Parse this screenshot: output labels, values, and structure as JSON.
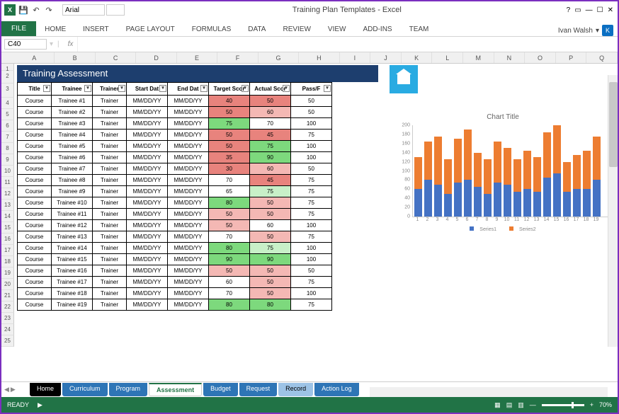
{
  "app": {
    "title": "Training Plan Templates - Excel",
    "user": "Ivan Walsh",
    "user_initial": "K"
  },
  "qat": {
    "font_name": "Arial",
    "font_size": ""
  },
  "ribbon": {
    "file": "FILE",
    "tabs": [
      "HOME",
      "INSERT",
      "PAGE LAYOUT",
      "FORMULAS",
      "DATA",
      "REVIEW",
      "VIEW",
      "ADD-INS",
      "TEAM"
    ]
  },
  "formula": {
    "name_box": "C40",
    "fx": "fx"
  },
  "columns": [
    "A",
    "B",
    "C",
    "D",
    "E",
    "F",
    "G",
    "H",
    "I",
    "J",
    "K",
    "L",
    "M",
    "N",
    "O",
    "P",
    "Q"
  ],
  "row_start": 1,
  "row_end": 25,
  "banner": "Training Assessment",
  "table": {
    "headers": [
      "Title",
      "Trainee",
      "Trainer",
      "Start Dat",
      "End Dat",
      "Target Scor",
      "Actual Scor",
      "Pass/F"
    ],
    "rows": [
      {
        "title": "Course",
        "trainee": "Trainee #1",
        "trainer": "Trainer",
        "start": "MM/DD/YY",
        "end": "MM/DD/YY",
        "target": 40,
        "target_cls": "cell-red",
        "actual": 50,
        "actual_cls": "cell-red",
        "pass": 50
      },
      {
        "title": "Course",
        "trainee": "Trainee #2",
        "trainer": "Trainer",
        "start": "MM/DD/YY",
        "end": "MM/DD/YY",
        "target": 50,
        "target_cls": "cell-red",
        "actual": 60,
        "actual_cls": "cell-lightred",
        "pass": 50
      },
      {
        "title": "Course",
        "trainee": "Trainee #3",
        "trainer": "Trainer",
        "start": "MM/DD/YY",
        "end": "MM/DD/YY",
        "target": 75,
        "target_cls": "cell-green",
        "actual": 70,
        "actual_cls": "",
        "pass": 100
      },
      {
        "title": "Course",
        "trainee": "Trainee #4",
        "trainer": "Trainer",
        "start": "MM/DD/YY",
        "end": "MM/DD/YY",
        "target": 50,
        "target_cls": "cell-red",
        "actual": 45,
        "actual_cls": "cell-red",
        "pass": 75
      },
      {
        "title": "Course",
        "trainee": "Trainee #5",
        "trainer": "Trainer",
        "start": "MM/DD/YY",
        "end": "MM/DD/YY",
        "target": 50,
        "target_cls": "cell-red",
        "actual": 75,
        "actual_cls": "cell-green",
        "pass": 100
      },
      {
        "title": "Course",
        "trainee": "Trainee #6",
        "trainer": "Trainer",
        "start": "MM/DD/YY",
        "end": "MM/DD/YY",
        "target": 35,
        "target_cls": "cell-red",
        "actual": 90,
        "actual_cls": "cell-green",
        "pass": 100
      },
      {
        "title": "Course",
        "trainee": "Trainee #7",
        "trainer": "Trainer",
        "start": "MM/DD/YY",
        "end": "MM/DD/YY",
        "target": 30,
        "target_cls": "cell-red",
        "actual": 60,
        "actual_cls": "cell-lightred",
        "pass": 50
      },
      {
        "title": "Course",
        "trainee": "Trainee #8",
        "trainer": "Trainer",
        "start": "MM/DD/YY",
        "end": "MM/DD/YY",
        "target": 70,
        "target_cls": "",
        "actual": 45,
        "actual_cls": "cell-red",
        "pass": 75
      },
      {
        "title": "Course",
        "trainee": "Trainee #9",
        "trainer": "Trainer",
        "start": "MM/DD/YY",
        "end": "MM/DD/YY",
        "target": 65,
        "target_cls": "",
        "actual": 75,
        "actual_cls": "cell-lightgreen",
        "pass": 75
      },
      {
        "title": "Course",
        "trainee": "Trainee #10",
        "trainer": "Trainer",
        "start": "MM/DD/YY",
        "end": "MM/DD/YY",
        "target": 80,
        "target_cls": "cell-green",
        "actual": 50,
        "actual_cls": "cell-lightred",
        "pass": 75
      },
      {
        "title": "Course",
        "trainee": "Trainee #11",
        "trainer": "Trainer",
        "start": "MM/DD/YY",
        "end": "MM/DD/YY",
        "target": 50,
        "target_cls": "cell-lightred",
        "actual": 50,
        "actual_cls": "cell-lightred",
        "pass": 75
      },
      {
        "title": "Course",
        "trainee": "Trainee #12",
        "trainer": "Trainer",
        "start": "MM/DD/YY",
        "end": "MM/DD/YY",
        "target": 50,
        "target_cls": "cell-lightred",
        "actual": 60,
        "actual_cls": "",
        "pass": 100
      },
      {
        "title": "Course",
        "trainee": "Trainee #13",
        "trainer": "Trainer",
        "start": "MM/DD/YY",
        "end": "MM/DD/YY",
        "target": 70,
        "target_cls": "",
        "actual": 50,
        "actual_cls": "cell-lightred",
        "pass": 75
      },
      {
        "title": "Course",
        "trainee": "Trainee #14",
        "trainer": "Trainer",
        "start": "MM/DD/YY",
        "end": "MM/DD/YY",
        "target": 80,
        "target_cls": "cell-green",
        "actual": 75,
        "actual_cls": "cell-lightgreen",
        "pass": 100
      },
      {
        "title": "Course",
        "trainee": "Trainee #15",
        "trainer": "Trainer",
        "start": "MM/DD/YY",
        "end": "MM/DD/YY",
        "target": 90,
        "target_cls": "cell-green",
        "actual": 90,
        "actual_cls": "cell-green",
        "pass": 100
      },
      {
        "title": "Course",
        "trainee": "Trainee #16",
        "trainer": "Trainer",
        "start": "MM/DD/YY",
        "end": "MM/DD/YY",
        "target": 50,
        "target_cls": "cell-lightred",
        "actual": 50,
        "actual_cls": "cell-lightred",
        "pass": 50
      },
      {
        "title": "Course",
        "trainee": "Trainee #17",
        "trainer": "Trainer",
        "start": "MM/DD/YY",
        "end": "MM/DD/YY",
        "target": 60,
        "target_cls": "",
        "actual": 50,
        "actual_cls": "cell-lightred",
        "pass": 75
      },
      {
        "title": "Course",
        "trainee": "Trainee #18",
        "trainer": "Trainer",
        "start": "MM/DD/YY",
        "end": "MM/DD/YY",
        "target": 70,
        "target_cls": "",
        "actual": 50,
        "actual_cls": "cell-lightred",
        "pass": 100
      },
      {
        "title": "Course",
        "trainee": "Trainee #19",
        "trainer": "Trainer",
        "start": "MM/DD/YY",
        "end": "MM/DD/YY",
        "target": 80,
        "target_cls": "cell-green",
        "actual": 80,
        "actual_cls": "cell-green",
        "pass": 75
      }
    ]
  },
  "chart": {
    "title": "Chart Title",
    "type": "stacked-bar",
    "ylim": [
      0,
      200
    ],
    "ytick_step": 20,
    "y_ticks": [
      0,
      20,
      40,
      60,
      80,
      100,
      120,
      140,
      160,
      180,
      200
    ],
    "categories": [
      1,
      2,
      3,
      4,
      5,
      6,
      7,
      8,
      9,
      10,
      11,
      12,
      13,
      14,
      15,
      16,
      17,
      18,
      19
    ],
    "series1": {
      "name": "Series1",
      "color": "#4472c4",
      "values": [
        60,
        80,
        70,
        50,
        75,
        80,
        65,
        50,
        75,
        70,
        55,
        60,
        55,
        85,
        95,
        55,
        60,
        60,
        80
      ]
    },
    "series2": {
      "name": "Series2",
      "color": "#ed7d31",
      "values": [
        70,
        85,
        105,
        75,
        95,
        110,
        75,
        75,
        90,
        80,
        70,
        85,
        75,
        100,
        105,
        65,
        75,
        85,
        95
      ]
    },
    "background": "#ffffff"
  },
  "sheet_tabs": [
    {
      "label": "Home",
      "cls": "black"
    },
    {
      "label": "Curriculum",
      "cls": "blue"
    },
    {
      "label": "Program",
      "cls": "blue"
    },
    {
      "label": "Assessment",
      "cls": "active"
    },
    {
      "label": "Budget",
      "cls": "blue"
    },
    {
      "label": "Request",
      "cls": "blue"
    },
    {
      "label": "Record",
      "cls": "lightblue"
    },
    {
      "label": "Action Log",
      "cls": "blue"
    }
  ],
  "status": {
    "ready": "READY",
    "record": "",
    "zoom": "70%"
  }
}
